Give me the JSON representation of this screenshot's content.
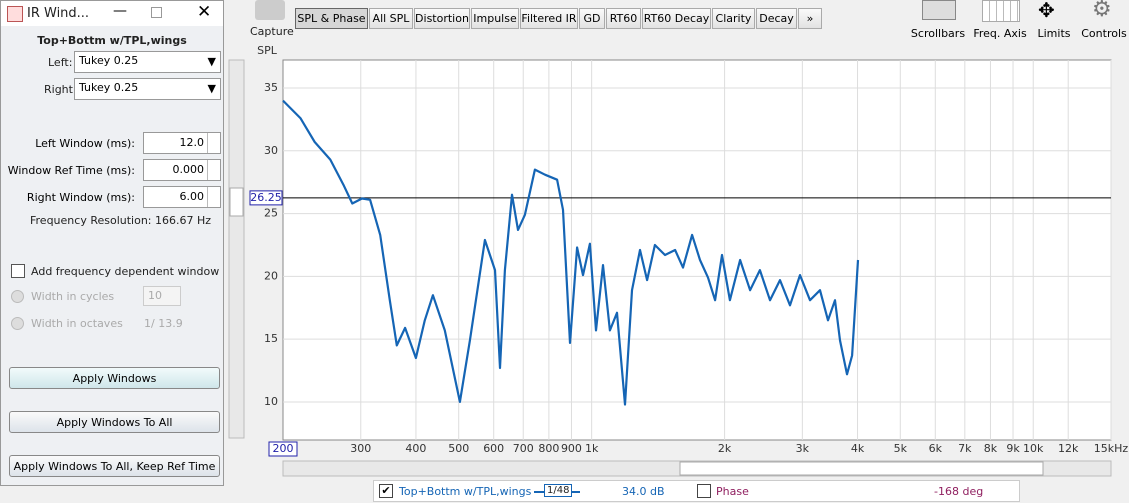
{
  "ir_window": {
    "title": "IR Wind...",
    "measurement": "Top+Bottm w/TPL,wings",
    "left_label": "Left:",
    "left_value": "Tukey 0.25",
    "right_label": "Right:",
    "right_value": "Tukey 0.25",
    "fields": [
      {
        "label": "Left Window (ms):",
        "value": "12.0"
      },
      {
        "label": "Window Ref Time (ms):",
        "value": "0.000"
      },
      {
        "label": "Right Window (ms):",
        "value": "6.00"
      }
    ],
    "resolution": "Frequency Resolution: 166.67 Hz",
    "freq_dependent": "Add frequency dependent window",
    "cycles_label": "Width in cycles",
    "cycles_value": "10",
    "octaves_label": "Width in octaves",
    "octaves_value": "1/ 13.9",
    "buttons": [
      "Apply Windows",
      "Apply Windows To All",
      "Apply Windows To All, Keep Ref Time"
    ]
  },
  "toolbar": {
    "capture": "Capture",
    "tabs": [
      "SPL & Phase",
      "All SPL",
      "Distortion",
      "Impulse",
      "Filtered IR",
      "GD",
      "RT60",
      "RT60 Decay",
      "Clarity",
      "Decay",
      "»"
    ],
    "tools": [
      "Scrollbars",
      "Freq. Axis",
      "Limits",
      "Controls"
    ]
  },
  "plot": {
    "type": "line",
    "y_label": "SPL",
    "log_x": true,
    "grid": true,
    "xlim": [
      200,
      15000
    ],
    "ylim": [
      6.97,
      37.23
    ],
    "cursor_x": 200,
    "cursor_y": 26.25,
    "xticks": [
      300,
      400,
      500,
      600,
      700,
      800,
      900,
      {
        "value": 1000,
        "label": "1k"
      },
      {
        "value": 2000,
        "label": "2k"
      },
      {
        "value": 3000,
        "label": "3k"
      },
      {
        "value": 4000,
        "label": "4k"
      },
      {
        "value": 5000,
        "label": "5k"
      },
      {
        "value": 6000,
        "label": "6k"
      },
      {
        "value": 7000,
        "label": "7k"
      },
      {
        "value": 8000,
        "label": "8k"
      },
      {
        "value": 9000,
        "label": "9k"
      },
      {
        "value": 10000,
        "label": "10k"
      },
      {
        "value": 12000,
        "label": "12k"
      },
      {
        "value": 15000,
        "label": "15kHz"
      }
    ],
    "yticks": [
      10,
      15,
      20,
      25,
      30,
      35
    ],
    "series": [
      {
        "name": "Top+Bottm w/TPL,wings",
        "color": "#1565b5",
        "x": [
          200,
          219,
          236,
          256,
          274,
          287,
          302,
          315,
          332,
          349,
          362,
          378,
          400,
          419,
          437,
          465,
          503,
          530,
          573,
          604,
          620,
          636,
          660,
          681,
          706,
          744,
          784,
          835,
          861,
          893,
          927,
          956,
          991,
          1023,
          1061,
          1100,
          1141,
          1190,
          1234,
          1287,
          1335,
          1391,
          1466,
          1545,
          1610,
          1688,
          1759,
          1834,
          1903,
          1973,
          2056,
          2168,
          2284,
          2405,
          2534,
          2670,
          2813,
          2963,
          3122,
          3289,
          3430,
          3557,
          3650,
          3786,
          3888,
          4010
        ],
        "values": [
          34.0,
          32.6,
          30.7,
          29.3,
          27.3,
          25.8,
          26.2,
          26.1,
          23.3,
          18.1,
          14.5,
          15.9,
          13.5,
          16.5,
          18.5,
          15.7,
          10.0,
          14.9,
          22.9,
          20.5,
          12.7,
          20.5,
          26.5,
          23.7,
          24.9,
          28.5,
          28.1,
          27.7,
          25.3,
          14.7,
          22.3,
          20.1,
          22.6,
          15.7,
          20.9,
          15.7,
          17.1,
          9.8,
          18.9,
          22.1,
          19.7,
          22.5,
          21.7,
          22.1,
          20.7,
          23.3,
          21.3,
          19.9,
          18.1,
          21.7,
          18.1,
          21.3,
          18.9,
          20.5,
          18.1,
          19.7,
          17.7,
          20.1,
          18.1,
          18.9,
          16.5,
          18.1,
          14.9,
          12.2,
          13.7,
          21.3
        ]
      }
    ]
  },
  "legend": {
    "smoothing": "1/48",
    "level": "34.0 dB",
    "phase_name": "Phase",
    "phase_value": "-168 deg"
  }
}
